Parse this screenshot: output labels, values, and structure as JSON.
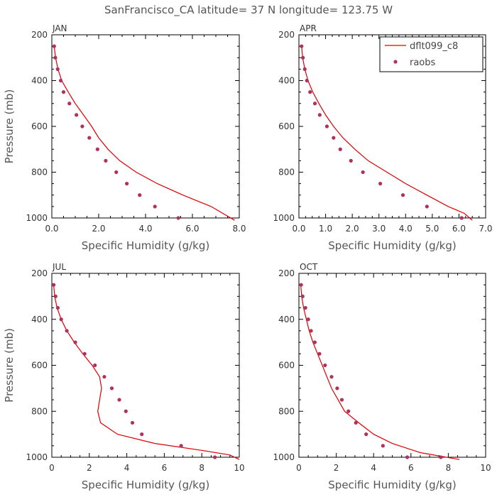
{
  "title": "SanFrancisco_CA  latitude= 37 N longitude= 123.75 W",
  "colors": {
    "model": "#dd0000",
    "obs": "#b03060"
  },
  "legend": {
    "placement": "top-right of APR panel",
    "entries": [
      "dflt099_c8",
      "raobs"
    ]
  },
  "chart_data": [
    {
      "type": "line",
      "panel": "JAN",
      "xlabel": "Specific Humidity (g/kg)",
      "ylabel": "Pressure (mb)",
      "xlim": [
        0,
        8
      ],
      "ylim": [
        1000,
        200
      ],
      "xticks": [
        "0.0",
        "2.0",
        "4.0",
        "6.0",
        "8.0"
      ],
      "yticks": [
        "200",
        "400",
        "600",
        "800",
        "1000"
      ],
      "series": [
        {
          "name": "dflt099_c8",
          "kind": "line",
          "x": [
            0.1,
            0.16,
            0.26,
            0.42,
            0.7,
            1.0,
            1.35,
            1.7,
            2.0,
            2.4,
            2.9,
            3.6,
            4.5,
            5.6,
            6.8,
            7.8
          ],
          "y": [
            250,
            300,
            350,
            400,
            450,
            500,
            550,
            600,
            650,
            700,
            750,
            800,
            850,
            900,
            950,
            1010
          ]
        },
        {
          "name": "raobs",
          "kind": "scatter",
          "x": [
            0.1,
            0.15,
            0.25,
            0.38,
            0.5,
            0.75,
            1.05,
            1.3,
            1.6,
            1.95,
            2.3,
            2.75,
            3.2,
            3.75,
            4.4,
            5.4
          ],
          "y": [
            250,
            300,
            350,
            400,
            450,
            500,
            550,
            600,
            650,
            700,
            750,
            800,
            850,
            900,
            950,
            1000
          ]
        }
      ]
    },
    {
      "type": "line",
      "panel": "APR",
      "xlabel": "Specific Humidity (g/kg)",
      "ylabel": "",
      "xlim": [
        0,
        7
      ],
      "ylim": [
        1000,
        200
      ],
      "xticks": [
        "0.0",
        "1.0",
        "2.0",
        "3.0",
        "4.0",
        "5.0",
        "6.0",
        "7.0"
      ],
      "yticks": [
        "200",
        "400",
        "600",
        "800",
        "1000"
      ],
      "series": [
        {
          "name": "dflt099_c8",
          "kind": "line",
          "x": [
            0.1,
            0.14,
            0.22,
            0.34,
            0.52,
            0.75,
            1.0,
            1.3,
            1.65,
            2.1,
            2.6,
            3.3,
            4.0,
            4.8,
            5.6,
            6.2,
            6.5
          ],
          "y": [
            250,
            300,
            350,
            400,
            450,
            500,
            550,
            600,
            650,
            700,
            750,
            800,
            850,
            900,
            950,
            980,
            1010
          ]
        },
        {
          "name": "raobs",
          "kind": "scatter",
          "x": [
            0.1,
            0.15,
            0.22,
            0.3,
            0.42,
            0.6,
            0.78,
            1.05,
            1.3,
            1.55,
            1.95,
            2.4,
            3.05,
            3.9,
            4.8,
            6.1
          ],
          "y": [
            250,
            300,
            350,
            400,
            450,
            500,
            550,
            600,
            650,
            700,
            750,
            800,
            850,
            900,
            950,
            1000
          ]
        }
      ]
    },
    {
      "type": "line",
      "panel": "JUL",
      "xlabel": "Specific Humidity (g/kg)",
      "ylabel": "Pressure (mb)",
      "xlim": [
        0,
        10
      ],
      "ylim": [
        1000,
        200
      ],
      "xticks": [
        "0",
        "2",
        "4",
        "6",
        "8",
        "10"
      ],
      "yticks": [
        "200",
        "400",
        "600",
        "800",
        "1000"
      ],
      "series": [
        {
          "name": "dflt099_c8",
          "kind": "line",
          "x": [
            0.1,
            0.15,
            0.28,
            0.5,
            0.8,
            1.2,
            1.65,
            2.15,
            2.55,
            2.65,
            2.55,
            2.45,
            2.6,
            3.5,
            5.5,
            8.0,
            9.5,
            10.0
          ],
          "y": [
            250,
            300,
            350,
            400,
            450,
            500,
            550,
            600,
            650,
            700,
            750,
            800,
            850,
            900,
            940,
            970,
            990,
            1010
          ]
        },
        {
          "name": "raobs",
          "kind": "scatter",
          "x": [
            0.1,
            0.2,
            0.32,
            0.5,
            0.8,
            1.25,
            1.75,
            2.3,
            2.8,
            3.2,
            3.6,
            3.95,
            4.3,
            4.8,
            6.9,
            8.7
          ],
          "y": [
            250,
            300,
            350,
            400,
            450,
            500,
            550,
            600,
            650,
            700,
            750,
            800,
            850,
            900,
            950,
            1000
          ]
        }
      ]
    },
    {
      "type": "line",
      "panel": "OCT",
      "xlabel": "Specific Humidity (g/kg)",
      "ylabel": "",
      "xlim": [
        0,
        10
      ],
      "ylim": [
        1000,
        200
      ],
      "xticks": [
        "0",
        "2",
        "4",
        "6",
        "8",
        "10"
      ],
      "yticks": [
        "200",
        "400",
        "600",
        "800",
        "1000"
      ],
      "series": [
        {
          "name": "dflt099_c8",
          "kind": "line",
          "x": [
            0.1,
            0.15,
            0.25,
            0.4,
            0.55,
            0.75,
            1.0,
            1.25,
            1.5,
            1.75,
            2.1,
            2.45,
            3.2,
            4.0,
            5.0,
            6.5,
            8.6
          ],
          "y": [
            250,
            300,
            350,
            400,
            450,
            500,
            550,
            600,
            650,
            700,
            750,
            800,
            850,
            900,
            940,
            980,
            1010
          ]
        },
        {
          "name": "raobs",
          "kind": "scatter",
          "x": [
            0.12,
            0.2,
            0.35,
            0.5,
            0.65,
            0.85,
            1.1,
            1.4,
            1.75,
            2.05,
            2.3,
            2.65,
            3.05,
            3.6,
            4.5,
            5.8,
            7.6
          ],
          "y": [
            250,
            300,
            350,
            400,
            450,
            500,
            550,
            600,
            650,
            700,
            750,
            800,
            850,
            900,
            950,
            1000,
            1000
          ]
        }
      ]
    }
  ]
}
